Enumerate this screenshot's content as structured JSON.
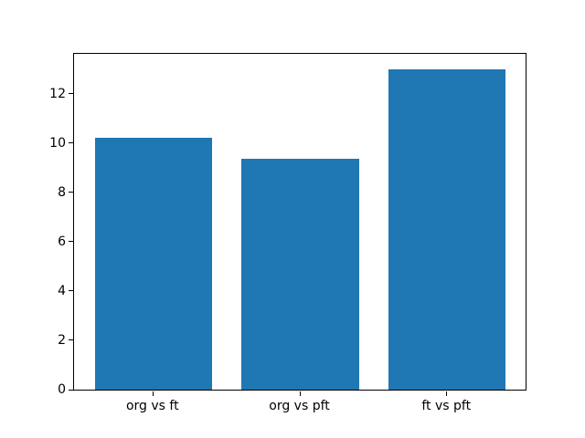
{
  "chart_data": {
    "type": "bar",
    "title": "",
    "xlabel": "",
    "ylabel": "",
    "categories": [
      "org vs ft",
      "org vs pft",
      "ft vs pft"
    ],
    "values": [
      10.2,
      9.35,
      13.0
    ],
    "yticks": [
      0,
      2,
      4,
      6,
      8,
      10,
      12
    ],
    "ylim": [
      0,
      13.65
    ],
    "xlim": [
      -0.54,
      2.54
    ],
    "bar_width_units": 0.8,
    "bar_color": "#1f77b4",
    "grid": false,
    "legend_position": "none"
  }
}
